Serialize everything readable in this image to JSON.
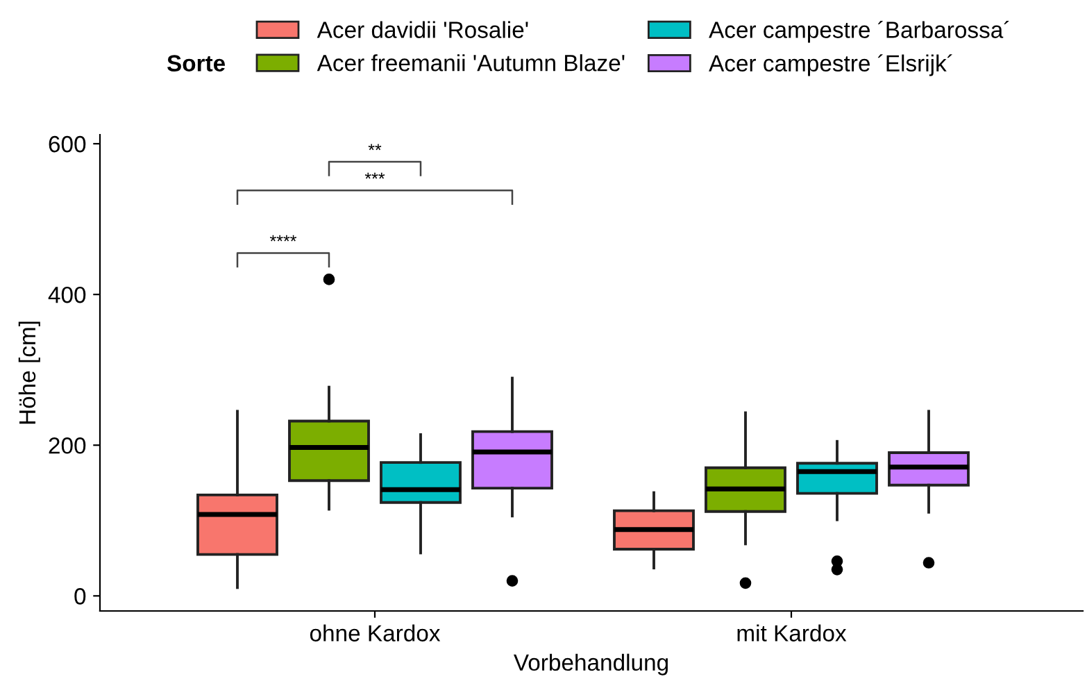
{
  "chart_data": {
    "type": "box",
    "xlabel": "Vorbehandlung",
    "ylabel": "Höhe [cm]",
    "legend_title": "Sorte",
    "legend": "top",
    "categories": [
      "ohne Kardox",
      "mit Kardox"
    ],
    "ylim": [
      -20,
      612
    ],
    "yticks": [
      0,
      200,
      400,
      600
    ],
    "grid": false,
    "annotations": [
      "****",
      "***",
      "**"
    ],
    "series": [
      {
        "name": "Acer davidii 'Rosalie'",
        "color": "#f8766d",
        "boxes": [
          {
            "low": 11,
            "q1": 55,
            "median": 108,
            "q3": 134,
            "high": 245
          },
          {
            "low": 37,
            "q1": 62,
            "median": 88,
            "q3": 113,
            "high": 137
          }
        ]
      },
      {
        "name": "Acer freemanii 'Autumn Blaze'",
        "color": "#7cae00",
        "boxes": [
          {
            "low": 115,
            "q1": 153,
            "median": 197,
            "q3": 232,
            "high": 277,
            "outliers": [
              420
            ]
          },
          {
            "low": 69,
            "q1": 112,
            "median": 142,
            "q3": 170,
            "high": 243,
            "outliers": [
              17
            ]
          }
        ]
      },
      {
        "name": "Acer campestre ´Barbarossa´",
        "color": "#00bfc4",
        "boxes": [
          {
            "low": 57,
            "q1": 124,
            "median": 141,
            "q3": 177,
            "high": 214
          },
          {
            "low": 101,
            "q1": 136,
            "median": 165,
            "q3": 176,
            "high": 205,
            "outliers": [
              46,
              35
            ]
          }
        ]
      },
      {
        "name": "Acer campestre ´Elsrijk´",
        "color": "#c77cff",
        "boxes": [
          {
            "low": 106,
            "q1": 143,
            "median": 191,
            "q3": 218,
            "high": 289,
            "outliers": [
              20
            ]
          },
          {
            "low": 111,
            "q1": 147,
            "median": 171,
            "q3": 190,
            "high": 245,
            "outliers": [
              44
            ]
          }
        ]
      }
    ]
  }
}
